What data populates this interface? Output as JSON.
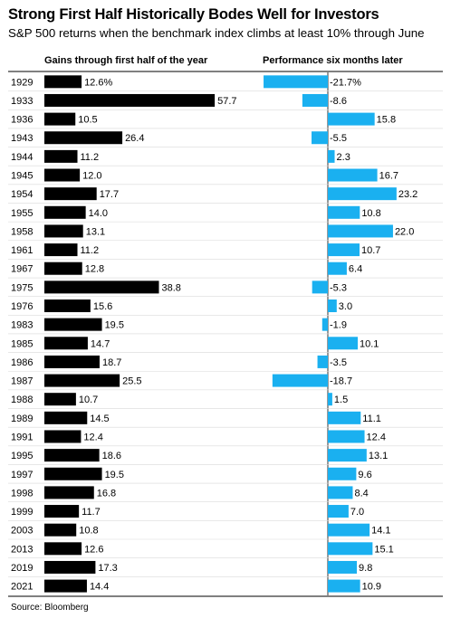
{
  "title": "Strong First Half Historically Bodes Well for Investors",
  "subtitle": "S&P 500 returns when the benchmark index climbs at least 10% through June",
  "source": "Source: Bloomberg",
  "colors": {
    "left_bar": "#000000",
    "right_bar": "#1ab0f0",
    "rule": "#000000"
  },
  "chart_data": {
    "type": "bar",
    "categories": [
      "1929",
      "1933",
      "1936",
      "1943",
      "1944",
      "1945",
      "1954",
      "1955",
      "1958",
      "1961",
      "1967",
      "1975",
      "1976",
      "1983",
      "1985",
      "1986",
      "1987",
      "1988",
      "1989",
      "1991",
      "1995",
      "1997",
      "1998",
      "1999",
      "2003",
      "2013",
      "2019",
      "2021"
    ],
    "series": [
      {
        "name": "Gains through first half of the year",
        "values": [
          12.6,
          57.7,
          10.5,
          26.4,
          11.2,
          12.0,
          17.7,
          14.0,
          13.1,
          11.2,
          12.8,
          38.8,
          15.6,
          19.5,
          14.7,
          18.7,
          25.5,
          10.7,
          14.5,
          12.4,
          18.6,
          19.5,
          16.8,
          11.7,
          10.8,
          12.6,
          17.3,
          14.4
        ],
        "labels": [
          "12.6%",
          "57.7",
          "10.5",
          "26.4",
          "11.2",
          "12.0",
          "17.7",
          "14.0",
          "13.1",
          "11.2",
          "12.8",
          "38.8",
          "15.6",
          "19.5",
          "14.7",
          "18.7",
          "25.5",
          "10.7",
          "14.5",
          "12.4",
          "18.6",
          "19.5",
          "16.8",
          "11.7",
          "10.8",
          "12.6",
          "17.3",
          "14.4"
        ]
      },
      {
        "name": "Performance six months later",
        "values": [
          -21.7,
          -8.6,
          15.8,
          -5.5,
          2.3,
          16.7,
          23.2,
          10.8,
          22.0,
          10.7,
          6.4,
          -5.3,
          3.0,
          -1.9,
          10.1,
          -3.5,
          -18.7,
          1.5,
          11.1,
          12.4,
          13.1,
          9.6,
          8.4,
          7.0,
          14.1,
          15.1,
          9.8,
          10.9
        ],
        "labels": [
          "-21.7%",
          "-8.6",
          "15.8",
          "-5.5",
          "2.3",
          "16.7",
          "23.2",
          "10.8",
          "22.0",
          "10.7",
          "6.4",
          "-5.3",
          "3.0",
          "-1.9",
          "10.1",
          "-3.5",
          "-18.7",
          "1.5",
          "11.1",
          "12.4",
          "13.1",
          "9.6",
          "8.4",
          "7.0",
          "14.1",
          "15.1",
          "9.8",
          "10.9"
        ]
      }
    ],
    "xlabel": "",
    "ylabel": ""
  }
}
